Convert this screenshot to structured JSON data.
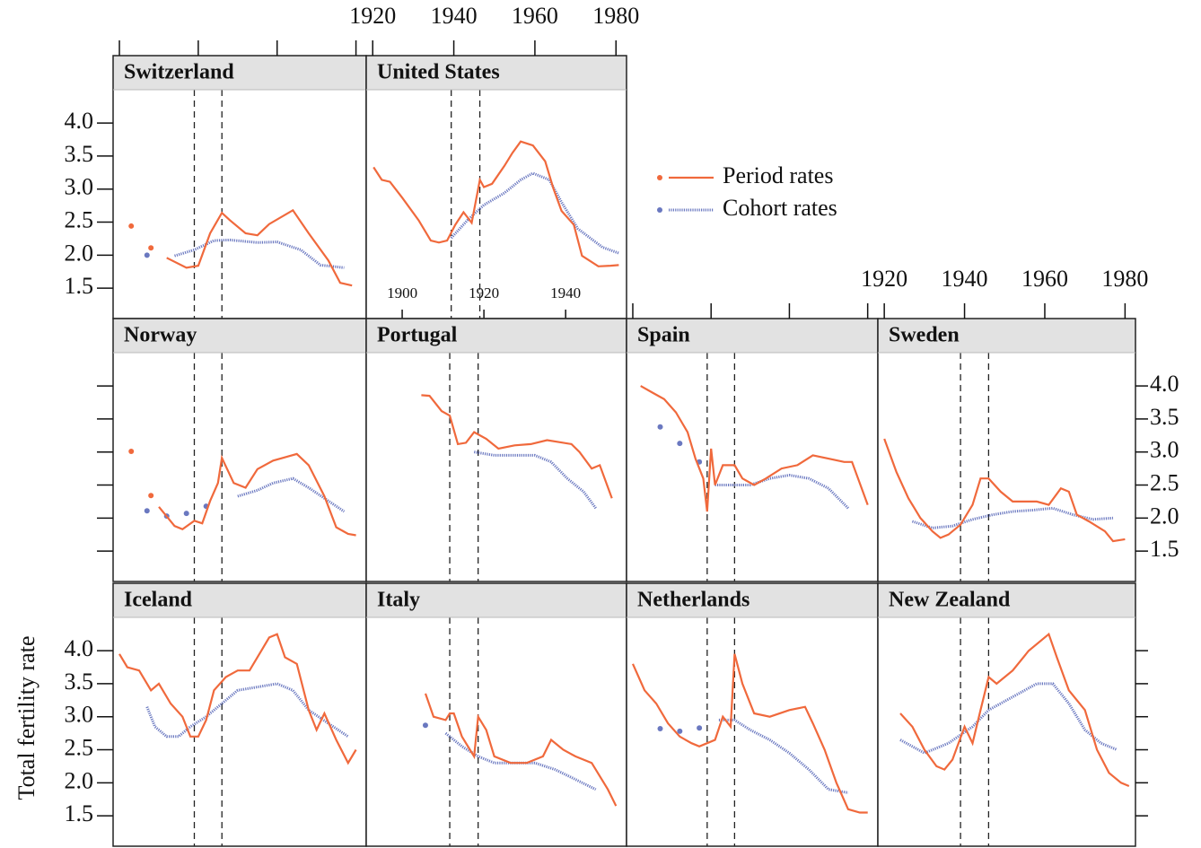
{
  "chart_data": {
    "type": "line",
    "ylabel": "Total fertility rate",
    "ylim": [
      1.04,
      5.02
    ],
    "yticks": [
      1.5,
      {
        "value": 2,
        "label": "2.0"
      },
      2.5,
      {
        "value": 3,
        "label": "3.0"
      },
      3.5,
      {
        "value": 4,
        "label": "4.0"
      }
    ],
    "xlim": [
      1918.4,
      1982.6
    ],
    "xticks": [
      1920,
      1940,
      1960,
      1980
    ],
    "vlines": [
      1939,
      1946
    ],
    "legend": [
      {
        "name": "Period rates",
        "color": "#f0693c"
      },
      {
        "name": "Cohort rates",
        "color": "#6a78c0"
      }
    ],
    "panels": [
      {
        "title": "Switzerland",
        "period": {
          "x": [
            1923,
            null,
            1928,
            null,
            1932,
            1937,
            1940,
            1943,
            1946,
            1948,
            1952,
            1955,
            1958,
            1964,
            1968,
            1973,
            1976,
            1979
          ],
          "values": [
            2.44,
            null,
            2.11,
            null,
            1.96,
            1.81,
            1.84,
            2.33,
            2.64,
            2.53,
            2.33,
            2.3,
            2.47,
            2.68,
            2.33,
            1.92,
            1.58,
            1.54
          ]
        },
        "cohort": {
          "x": [
            1927,
            null,
            1934,
            1939,
            1944,
            1948,
            1955,
            1960,
            1966,
            1971,
            1977
          ],
          "values": [
            2.0,
            null,
            1.99,
            2.08,
            2.22,
            2.23,
            2.19,
            2.2,
            2.08,
            1.85,
            1.81
          ]
        }
      },
      {
        "title": "United States",
        "xlim": [
          1891.2,
          1954.9
        ],
        "xticks": [
          1900,
          1920,
          1940
        ],
        "vlines": [
          1912,
          1919
        ],
        "period": {
          "x": [
            1893,
            1895,
            1897,
            1900,
            1904,
            1907,
            1909,
            1911,
            1913,
            1915,
            1917,
            1919,
            1920,
            1922,
            1925,
            1927,
            1929,
            1932,
            1935,
            1937,
            1939,
            1942,
            1944,
            1948,
            1951,
            1953
          ],
          "values": [
            3.33,
            3.14,
            3.11,
            2.87,
            2.53,
            2.22,
            2.19,
            2.22,
            2.46,
            2.65,
            2.49,
            3.14,
            3.03,
            3.08,
            3.35,
            3.55,
            3.72,
            3.66,
            3.42,
            3.01,
            2.67,
            2.46,
            1.99,
            1.83,
            1.84,
            1.85
          ]
        },
        "cohort": {
          "x": [
            1912,
            1916,
            1920,
            1925,
            1929,
            1932,
            1936,
            1939,
            1943,
            1949,
            1953
          ],
          "values": [
            2.26,
            2.53,
            2.76,
            2.94,
            3.14,
            3.24,
            3.14,
            2.8,
            2.4,
            2.12,
            2.03
          ]
        }
      },
      {
        "title": "Norway",
        "period": {
          "x": [
            1923,
            null,
            1928,
            null,
            1930,
            1934,
            1936,
            1939,
            1941,
            1943,
            1945,
            1946,
            1949,
            1952,
            1955,
            1959,
            1965,
            1968,
            1972,
            1975,
            1978,
            1980
          ],
          "values": [
            3.01,
            null,
            2.34,
            null,
            2.17,
            1.88,
            1.83,
            1.96,
            1.92,
            2.26,
            2.53,
            2.91,
            2.53,
            2.46,
            2.74,
            2.87,
            2.97,
            2.8,
            2.33,
            1.86,
            1.76,
            1.74
          ]
        },
        "cohort": {
          "x": [
            1927,
            null,
            1932,
            null,
            1937,
            null,
            1942,
            null,
            1950,
            1955,
            1959,
            1964,
            1968,
            1973,
            1977
          ],
          "values": [
            2.11,
            null,
            2.03,
            null,
            2.07,
            null,
            2.18,
            null,
            2.33,
            2.42,
            2.53,
            2.6,
            2.46,
            2.26,
            2.1
          ]
        }
      },
      {
        "title": "Portugal",
        "period": {
          "x": [
            1932,
            1934,
            1937,
            1939,
            1941,
            1943,
            1945,
            1948,
            1951,
            1955,
            1959,
            1963,
            1966,
            1969,
            1971,
            1974,
            1976,
            1979
          ],
          "values": [
            3.86,
            3.85,
            3.62,
            3.55,
            3.12,
            3.14,
            3.3,
            3.2,
            3.05,
            3.1,
            3.12,
            3.18,
            3.15,
            3.12,
            3.0,
            2.75,
            2.8,
            2.3
          ]
        },
        "cohort": {
          "x": [
            1945,
            1950,
            1955,
            1960,
            1964,
            1968,
            1972,
            1975
          ],
          "values": [
            3.0,
            2.95,
            2.95,
            2.95,
            2.85,
            2.6,
            2.4,
            2.15
          ]
        }
      },
      {
        "title": "Spain",
        "period": {
          "x": [
            1922,
            1925,
            1928,
            1931,
            1934,
            1936,
            1938,
            1939,
            1940,
            1941,
            1943,
            1946,
            1948,
            1951,
            1954,
            1958,
            1962,
            1966,
            1970,
            1974,
            1976,
            1980
          ],
          "values": [
            4.0,
            3.9,
            3.8,
            3.6,
            3.3,
            2.9,
            2.6,
            2.1,
            3.05,
            2.5,
            2.8,
            2.8,
            2.6,
            2.5,
            2.6,
            2.75,
            2.8,
            2.95,
            2.9,
            2.85,
            2.85,
            2.2
          ]
        },
        "cohort": {
          "x": [
            1927,
            null,
            1932,
            null,
            1937,
            null,
            1941,
            1945,
            1950,
            1955,
            1960,
            1965,
            1970,
            1975
          ],
          "values": [
            3.38,
            null,
            3.13,
            null,
            2.85,
            null,
            2.5,
            2.5,
            2.5,
            2.6,
            2.65,
            2.6,
            2.45,
            2.15
          ]
        }
      },
      {
        "title": "Sweden",
        "period": {
          "x": [
            1920,
            1923,
            1926,
            1929,
            1932,
            1934,
            1936,
            1939,
            1942,
            1944,
            1946,
            1949,
            1952,
            1955,
            1958,
            1961,
            1964,
            1966,
            1968,
            1971,
            1975,
            1977,
            1980
          ],
          "values": [
            3.2,
            2.7,
            2.3,
            2.0,
            1.8,
            1.7,
            1.75,
            1.9,
            2.2,
            2.6,
            2.6,
            2.4,
            2.25,
            2.25,
            2.25,
            2.2,
            2.45,
            2.4,
            2.05,
            1.95,
            1.8,
            1.65,
            1.68
          ]
        },
        "cohort": {
          "x": [
            1927,
            1932,
            1937,
            1942,
            1947,
            1952,
            1957,
            1962,
            1967,
            1972,
            1977
          ],
          "values": [
            1.95,
            1.85,
            1.88,
            1.98,
            2.05,
            2.1,
            2.12,
            2.15,
            2.05,
            1.98,
            2.0
          ]
        }
      },
      {
        "title": "Iceland",
        "period": {
          "x": [
            1920,
            1922,
            1925,
            1928,
            1930,
            1933,
            1936,
            1938,
            1940,
            1942,
            1944,
            1947,
            1950,
            1953,
            1956,
            1958,
            1960,
            1962,
            1965,
            1968,
            1970,
            1972,
            1975,
            1978,
            1980
          ],
          "values": [
            3.95,
            3.75,
            3.7,
            3.4,
            3.5,
            3.2,
            3.0,
            2.7,
            2.7,
            2.95,
            3.4,
            3.6,
            3.7,
            3.7,
            4.0,
            4.2,
            4.25,
            3.9,
            3.8,
            3.1,
            2.8,
            3.05,
            2.65,
            2.3,
            2.5
          ]
        },
        "cohort": {
          "x": [
            1927,
            1929,
            1932,
            1935,
            1938,
            1942,
            1946,
            1950,
            1955,
            1960,
            1964,
            1968,
            1973,
            1978
          ],
          "values": [
            3.15,
            2.85,
            2.7,
            2.7,
            2.85,
            3.0,
            3.2,
            3.4,
            3.45,
            3.5,
            3.4,
            3.1,
            2.9,
            2.7
          ]
        }
      },
      {
        "title": "Italy",
        "period": {
          "x": [
            1933,
            1935,
            1938,
            1939,
            1940,
            1942,
            1944,
            1945,
            1946,
            1948,
            1950,
            1954,
            1958,
            1962,
            1964,
            1967,
            1970,
            1974,
            1978,
            1980
          ],
          "values": [
            3.35,
            3.0,
            2.95,
            3.05,
            3.05,
            2.7,
            2.5,
            2.4,
            3.0,
            2.8,
            2.4,
            2.3,
            2.3,
            2.4,
            2.65,
            2.5,
            2.4,
            2.3,
            1.9,
            1.65
          ]
        },
        "cohort": {
          "x": [
            1933,
            null,
            1938,
            1942,
            1946,
            1950,
            1955,
            1960,
            1965,
            1970,
            1975
          ],
          "values": [
            2.87,
            null,
            2.75,
            2.55,
            2.4,
            2.3,
            2.3,
            2.3,
            2.2,
            2.05,
            1.9
          ]
        }
      },
      {
        "title": "Netherlands",
        "period": {
          "x": [
            1920,
            1923,
            1926,
            1929,
            1932,
            1935,
            1937,
            1939,
            1941,
            1943,
            1945,
            1946,
            1948,
            1951,
            1955,
            1960,
            1964,
            1966,
            1969,
            1972,
            1975,
            1978,
            1980
          ],
          "values": [
            3.8,
            3.4,
            3.2,
            2.9,
            2.7,
            2.6,
            2.55,
            2.6,
            2.65,
            3.0,
            2.85,
            3.95,
            3.5,
            3.05,
            3.0,
            3.1,
            3.15,
            2.9,
            2.5,
            2.0,
            1.6,
            1.55,
            1.55
          ]
        },
        "cohort": {
          "x": [
            1927,
            null,
            1932,
            null,
            1937,
            null,
            1942,
            1946,
            1950,
            1955,
            1960,
            1965,
            1970,
            1975
          ],
          "values": [
            2.82,
            null,
            2.78,
            null,
            2.83,
            null,
            2.95,
            2.95,
            2.8,
            2.65,
            2.45,
            2.2,
            1.9,
            1.85
          ]
        }
      },
      {
        "title": "New Zealand",
        "period": {
          "x": [
            1924,
            1927,
            1930,
            1933,
            1935,
            1937,
            1940,
            1942,
            1944,
            1946,
            1948,
            1952,
            1956,
            1961,
            1963,
            1966,
            1970,
            1973,
            1976,
            1979,
            1981
          ],
          "values": [
            3.05,
            2.85,
            2.5,
            2.25,
            2.2,
            2.35,
            2.85,
            2.6,
            3.1,
            3.6,
            3.5,
            3.7,
            4.0,
            4.25,
            3.9,
            3.4,
            3.1,
            2.5,
            2.15,
            2.0,
            1.95
          ]
        },
        "cohort": {
          "x": [
            1924,
            1930,
            1936,
            1942,
            1946,
            1952,
            1958,
            1962,
            1966,
            1970,
            1974,
            1978
          ],
          "values": [
            2.65,
            2.45,
            2.6,
            2.85,
            3.1,
            3.3,
            3.5,
            3.5,
            3.2,
            2.8,
            2.6,
            2.5
          ]
        }
      }
    ]
  }
}
